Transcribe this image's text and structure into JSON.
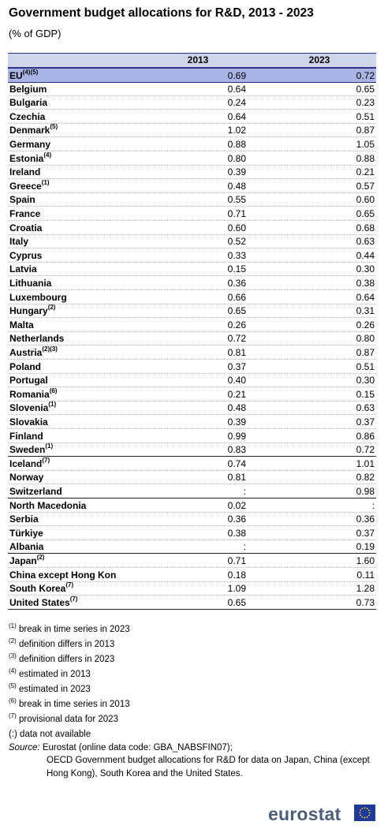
{
  "title": "Government budget allocations for R&D, 2013 - 2023",
  "subtitle": "(% of GDP)",
  "chart_data": {
    "type": "table",
    "columns": [
      "2013",
      "2023"
    ],
    "rows": [
      {
        "name": "EU",
        "sup": "(4)(5)",
        "v2013": "0.69",
        "v2023": "0.72"
      },
      {
        "name": "Belgium",
        "sup": "",
        "v2013": "0.64",
        "v2023": "0.65"
      },
      {
        "name": "Bulgaria",
        "sup": "",
        "v2013": "0.24",
        "v2023": "0.23"
      },
      {
        "name": "Czechia",
        "sup": "",
        "v2013": "0.64",
        "v2023": "0.51"
      },
      {
        "name": "Denmark",
        "sup": "(5)",
        "v2013": "1.02",
        "v2023": "0.87"
      },
      {
        "name": "Germany",
        "sup": "",
        "v2013": "0.88",
        "v2023": "1.05"
      },
      {
        "name": "Estonia",
        "sup": "(4)",
        "v2013": "0.80",
        "v2023": "0.88"
      },
      {
        "name": "Ireland",
        "sup": "",
        "v2013": "0.39",
        "v2023": "0.21"
      },
      {
        "name": "Greece",
        "sup": "(1)",
        "v2013": "0.48",
        "v2023": "0.57"
      },
      {
        "name": "Spain",
        "sup": "",
        "v2013": "0.55",
        "v2023": "0.60"
      },
      {
        "name": "France",
        "sup": "",
        "v2013": "0.71",
        "v2023": "0.65"
      },
      {
        "name": "Croatia",
        "sup": "",
        "v2013": "0.60",
        "v2023": "0.68"
      },
      {
        "name": "Italy",
        "sup": "",
        "v2013": "0.52",
        "v2023": "0.63"
      },
      {
        "name": "Cyprus",
        "sup": "",
        "v2013": "0.33",
        "v2023": "0.44"
      },
      {
        "name": "Latvia",
        "sup": "",
        "v2013": "0.15",
        "v2023": "0.30"
      },
      {
        "name": "Lithuania",
        "sup": "",
        "v2013": "0.36",
        "v2023": "0.38"
      },
      {
        "name": "Luxembourg",
        "sup": "",
        "v2013": "0.66",
        "v2023": "0.64"
      },
      {
        "name": "Hungary",
        "sup": "(2)",
        "v2013": "0.65",
        "v2023": "0.31"
      },
      {
        "name": "Malta",
        "sup": "",
        "v2013": "0.26",
        "v2023": "0.26"
      },
      {
        "name": "Netherlands",
        "sup": "",
        "v2013": "0.72",
        "v2023": "0.80"
      },
      {
        "name": "Austria",
        "sup": "(2)(3)",
        "v2013": "0.81",
        "v2023": "0.87"
      },
      {
        "name": "Poland",
        "sup": "",
        "v2013": "0.37",
        "v2023": "0.51"
      },
      {
        "name": "Portugal",
        "sup": "",
        "v2013": "0.40",
        "v2023": "0.30"
      },
      {
        "name": "Romania",
        "sup": "(6)",
        "v2013": "0.21",
        "v2023": "0.15"
      },
      {
        "name": "Slovenia",
        "sup": "(1)",
        "v2013": "0.48",
        "v2023": "0.63"
      },
      {
        "name": "Slovakia",
        "sup": "",
        "v2013": "0.39",
        "v2023": "0.37"
      },
      {
        "name": "Finland",
        "sup": "",
        "v2013": "0.99",
        "v2023": "0.86"
      },
      {
        "name": "Sweden",
        "sup": "(1)",
        "v2013": "0.83",
        "v2023": "0.72"
      },
      {
        "name": "Iceland",
        "sup": "(7)",
        "v2013": "0.74",
        "v2023": "1.01"
      },
      {
        "name": "Norway",
        "sup": "",
        "v2013": "0.81",
        "v2023": "0.82"
      },
      {
        "name": "Switzerland",
        "sup": "",
        "v2013": ":",
        "v2023": "0.98"
      },
      {
        "name": "North Macedonia",
        "sup": "",
        "v2013": "0.02",
        "v2023": ":"
      },
      {
        "name": "Serbia",
        "sup": "",
        "v2013": "0.36",
        "v2023": "0.36"
      },
      {
        "name": "Türkiye",
        "sup": "",
        "v2013": "0.38",
        "v2023": "0.37"
      },
      {
        "name": "Albania",
        "sup": "",
        "v2013": ":",
        "v2023": "0.19"
      },
      {
        "name": "Japan",
        "sup": "(2)",
        "v2013": "0.71",
        "v2023": "1.60"
      },
      {
        "name": "China except Hong Kon",
        "sup": "",
        "v2013": "0.18",
        "v2023": "0.11"
      },
      {
        "name": "South Korea",
        "sup": "(7)",
        "v2013": "1.09",
        "v2023": "1.28"
      },
      {
        "name": "United States",
        "sup": "(7)",
        "v2013": "0.65",
        "v2023": "0.73"
      }
    ]
  },
  "notes": [
    {
      "sup": "(1)",
      "text": "break in time series in 2023"
    },
    {
      "sup": "(2)",
      "text": "definition differs in 2013"
    },
    {
      "sup": "(3)",
      "text": "definition differs in 2023"
    },
    {
      "sup": "(4)",
      "text": "estimated in 2013"
    },
    {
      "sup": "(5)",
      "text": "estimated in 2023"
    },
    {
      "sup": "(6)",
      "text": "break in time series in 2013"
    },
    {
      "sup": "(7)",
      "text": "provisional data for 2023"
    },
    {
      "sup": "",
      "text": "(:) data not available"
    }
  ],
  "source": {
    "label": "Source:",
    "line1": "Eurostat (online data code: GBA_NABSFIN07);",
    "line2": "OECD Government budget allocations for R&D for data on Japan, China (except Hong Kong), South Korea and the United States."
  },
  "logo_text": "eurostat",
  "colors": {
    "header_bg": "#cfd5ea",
    "highlight_bg": "#aab4e6",
    "rule": "#2b2f85",
    "flag": "#1f3a9b",
    "stars": "#ffdd00"
  }
}
